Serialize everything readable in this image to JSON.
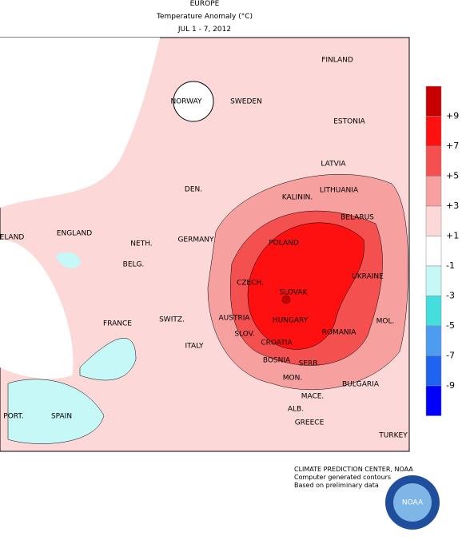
{
  "header": {
    "title": "EUROPE",
    "subtitle": "Temperature Anomaly (°C)",
    "period": "JUL 1 - 7, 2012"
  },
  "legend": {
    "labels": [
      "+9",
      "+7",
      "+5",
      "+3",
      "+1",
      "-1",
      "-3",
      "-5",
      "-7",
      "-9"
    ],
    "colors": [
      "#c80000",
      "#ff1010",
      "#f45050",
      "#f7a0a0",
      "#fcd8d8",
      "#ffffff",
      "#c6f8f8",
      "#44dede",
      "#4c9cf2",
      "#1e64f0",
      "#0000ff"
    ]
  },
  "map": {
    "labels": [
      "NORWAY",
      "SWEDEN",
      "FINLAND",
      "ESTONIA",
      "LATVIA",
      "LITHUANIA",
      "KALININ.",
      "DEN.",
      "BELARUS",
      "ENGLAND",
      "ELAND",
      "NETH.",
      "GERMANY",
      "POLAND",
      "BELG.",
      "UKRAINE",
      "CZECH.",
      "SLOVAK",
      "FRANCE",
      "SWITZ.",
      "AUSTRIA",
      "HUNGARY",
      "MOL.",
      "SLOV.",
      "ROMANIA",
      "CROATIA",
      "ITALY",
      "BOSNIA",
      "SERB.",
      "BULGARIA",
      "MON.",
      "MACE.",
      "PORT.",
      "SPAIN",
      "ALB.",
      "GREECE",
      "TURKEY"
    ]
  },
  "footer": {
    "lines": [
      "CLIMATE PREDICTION CENTER, NOAA",
      "Computer generated contours",
      "Based on preliminary data"
    ]
  },
  "logo": {
    "text": "NOAA"
  }
}
